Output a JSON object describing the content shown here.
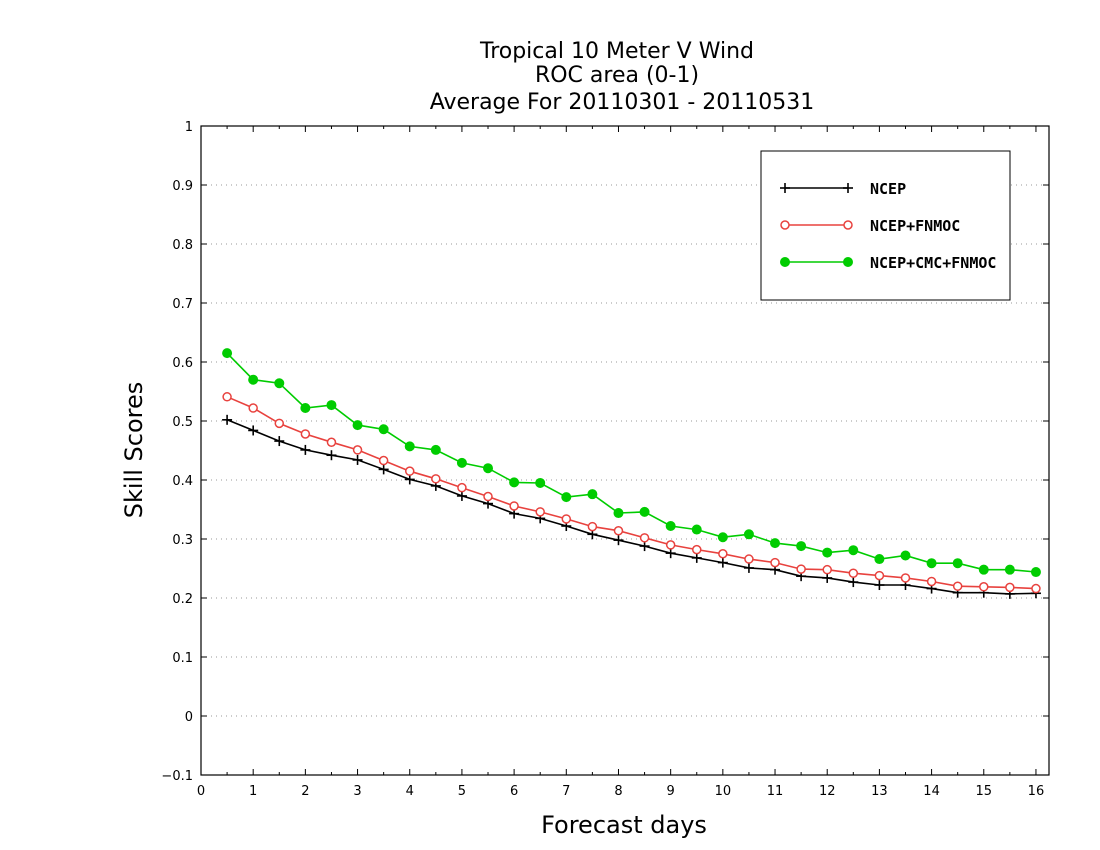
{
  "chart_data": {
    "type": "line",
    "title_lines": [
      "Tropical 10 Meter V Wind",
      "ROC area (0-1)",
      "Average For 20110301 - 20110531"
    ],
    "xlabel": "Forecast days",
    "ylabel": "Skill Scores",
    "xlim": [
      0,
      16.25
    ],
    "ylim": [
      -0.1,
      1
    ],
    "xticks": [
      "0",
      "1",
      "2",
      "3",
      "4",
      "5",
      "6",
      "7",
      "8",
      "9",
      "10",
      "11",
      "12",
      "13",
      "14",
      "15",
      "16"
    ],
    "yticks": [
      "−0.1",
      "0",
      "0.1",
      "0.2",
      "0.3",
      "0.4",
      "0.5",
      "0.6",
      "0.7",
      "0.8",
      "0.9",
      "1"
    ],
    "grid": "horizontal-dotted",
    "legend_position": "top-right",
    "x": [
      0.5,
      1,
      1.5,
      2,
      2.5,
      3,
      3.5,
      4,
      4.5,
      5,
      5.5,
      6,
      6.5,
      7,
      7.5,
      8,
      8.5,
      9,
      9.5,
      10,
      10.5,
      11,
      11.5,
      12,
      12.5,
      13,
      13.5,
      14,
      14.5,
      15,
      15.5,
      16
    ],
    "series": [
      {
        "name": "NCEP",
        "color": "#000000",
        "marker": "plus",
        "values": [
          0.502,
          0.484,
          0.466,
          0.451,
          0.442,
          0.434,
          0.418,
          0.401,
          0.39,
          0.373,
          0.36,
          0.343,
          0.335,
          0.322,
          0.308,
          0.298,
          0.288,
          0.276,
          0.268,
          0.26,
          0.251,
          0.248,
          0.237,
          0.234,
          0.227,
          0.222,
          0.222,
          0.216,
          0.209,
          0.209,
          0.207,
          0.208
        ]
      },
      {
        "name": "NCEP+FNMOC",
        "color": "#e8423e",
        "marker": "open-circle",
        "values": [
          0.541,
          0.522,
          0.496,
          0.478,
          0.464,
          0.451,
          0.433,
          0.415,
          0.402,
          0.387,
          0.372,
          0.356,
          0.346,
          0.334,
          0.321,
          0.314,
          0.302,
          0.29,
          0.282,
          0.275,
          0.266,
          0.26,
          0.249,
          0.248,
          0.242,
          0.238,
          0.234,
          0.228,
          0.22,
          0.219,
          0.218,
          0.216
        ]
      },
      {
        "name": "NCEP+CMC+FNMOC",
        "color": "#00cc00",
        "marker": "filled-circle",
        "values": [
          0.615,
          0.57,
          0.564,
          0.522,
          0.527,
          0.493,
          0.486,
          0.457,
          0.451,
          0.429,
          0.42,
          0.396,
          0.395,
          0.371,
          0.376,
          0.344,
          0.346,
          0.322,
          0.316,
          0.303,
          0.308,
          0.293,
          0.288,
          0.277,
          0.281,
          0.266,
          0.272,
          0.259,
          0.259,
          0.248,
          0.248,
          0.244
        ]
      }
    ]
  }
}
